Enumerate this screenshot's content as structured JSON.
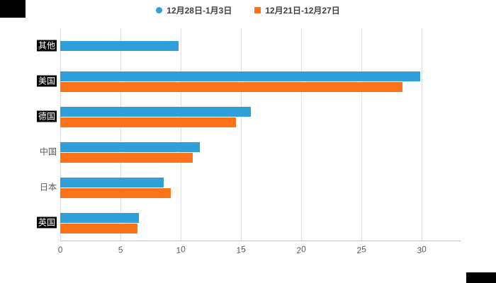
{
  "legend": {
    "series1_label": "12月28日-1月3日",
    "series2_label": "12月21日-12月27日"
  },
  "chart_data": {
    "type": "bar",
    "orientation": "horizontal",
    "title": "",
    "xlabel": "",
    "ylabel": "",
    "categories": [
      "其他",
      "美国",
      "德国",
      "中国",
      "日本",
      "英国"
    ],
    "masked_labels": [
      true,
      true,
      true,
      false,
      false,
      true
    ],
    "series": [
      {
        "name": "12月28日-1月3日",
        "color": "#2E9FD9",
        "marker": "circle",
        "values": [
          9.8,
          29.9,
          15.8,
          11.6,
          8.6,
          6.5
        ]
      },
      {
        "name": "12月21日-12月27日",
        "color": "#FB7218",
        "marker": "square",
        "values": [
          null,
          28.4,
          14.6,
          11.0,
          9.2,
          6.4
        ]
      }
    ],
    "x_ticks": [
      0,
      5,
      10,
      15,
      20,
      25,
      30
    ],
    "xlim": [
      0,
      33
    ],
    "grid": true,
    "legend_position": "top"
  }
}
